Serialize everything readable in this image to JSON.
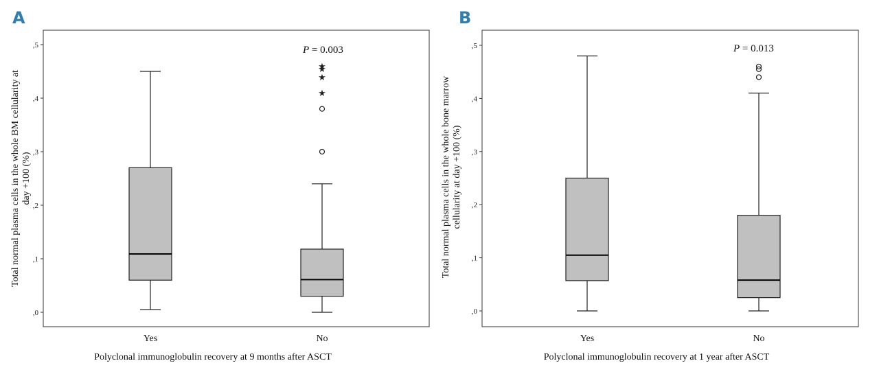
{
  "chart_data": [
    {
      "type": "boxplot",
      "panel_label": "A",
      "xlabel": "Polyclonal immunoglobulin recovery at 9 months after ASCT",
      "ylabel_lines": [
        "Total normal plasma cells in the whole BM cellularity at",
        "day +100 (%)"
      ],
      "ylim": [
        0,
        0.5
      ],
      "yticks": [
        {
          "value": 0.0,
          "label": ",0"
        },
        {
          "value": 0.1,
          "label": ",1"
        },
        {
          "value": 0.2,
          "label": ",2"
        },
        {
          "value": 0.3,
          "label": ",3"
        },
        {
          "value": 0.4,
          "label": ",4"
        },
        {
          "value": 0.5,
          "label": ",5"
        }
      ],
      "categories": [
        "Yes",
        "No"
      ],
      "boxes": [
        {
          "category": "Yes",
          "whisker_low": 0.005,
          "q1": 0.06,
          "median": 0.109,
          "q3": 0.27,
          "whisker_high": 0.45,
          "outliers": [],
          "extremes": []
        },
        {
          "category": "No",
          "whisker_low": 0.0,
          "q1": 0.03,
          "median": 0.061,
          "q3": 0.118,
          "whisker_high": 0.24,
          "outliers": [
            0.3,
            0.38
          ],
          "extremes": [
            0.41,
            0.44,
            0.455,
            0.46
          ]
        }
      ],
      "annotation": {
        "p_letter": "P",
        "p_rest": " = 0.003"
      }
    },
    {
      "type": "boxplot",
      "panel_label": "B",
      "xlabel": "Polyclonal immunoglobulin recovery at 1 year after ASCT",
      "ylabel_lines": [
        "Total normal plasma cells in the whole bone marrow",
        "cellularity at day +100  (%)"
      ],
      "ylim": [
        0,
        0.5
      ],
      "yticks": [
        {
          "value": 0.0,
          "label": ",0"
        },
        {
          "value": 0.1,
          "label": ",1"
        },
        {
          "value": 0.2,
          "label": ",2"
        },
        {
          "value": 0.3,
          "label": ",3"
        },
        {
          "value": 0.4,
          "label": ",4"
        },
        {
          "value": 0.5,
          "label": ",5"
        }
      ],
      "categories": [
        "Yes",
        "No"
      ],
      "boxes": [
        {
          "category": "Yes",
          "whisker_low": 0.0,
          "q1": 0.057,
          "median": 0.105,
          "q3": 0.25,
          "whisker_high": 0.48,
          "outliers": [],
          "extremes": []
        },
        {
          "category": "No",
          "whisker_low": 0.0,
          "q1": 0.025,
          "median": 0.058,
          "q3": 0.18,
          "whisker_high": 0.41,
          "outliers": [
            0.44,
            0.455,
            0.46
          ],
          "extremes": []
        }
      ],
      "annotation": {
        "p_letter": "P",
        "p_rest": " = 0.013"
      }
    }
  ],
  "colors": {
    "box_fill": "#c0c0c0",
    "line": "#222222",
    "frame": "#333333",
    "panel_letter": "#2e7fb0"
  }
}
